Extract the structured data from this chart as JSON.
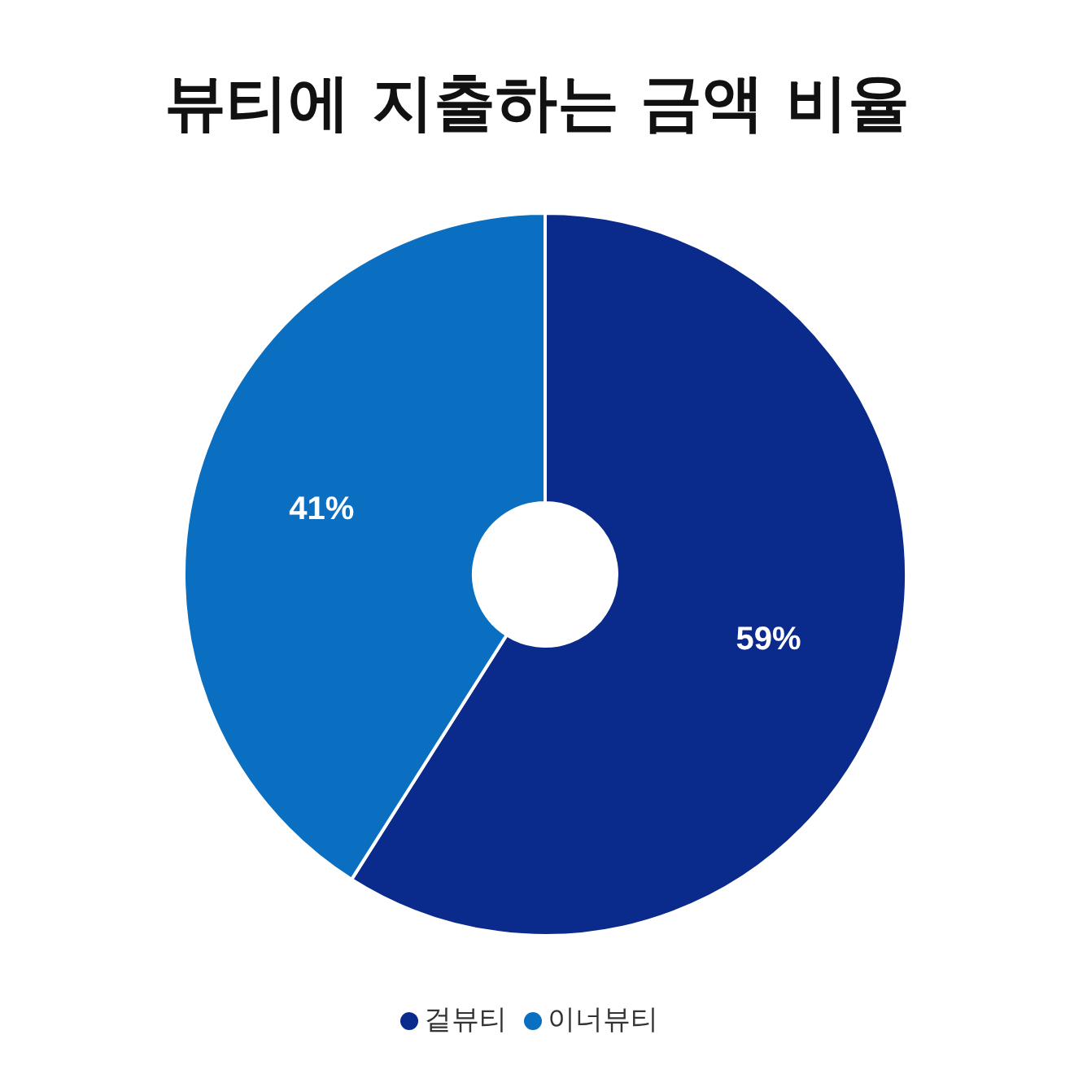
{
  "chart_data": {
    "type": "donut",
    "title": "뷰티에 지출하는 금액 비율",
    "categories": [
      "겉뷰티",
      "이너뷰티"
    ],
    "values": [
      59,
      41
    ],
    "colors": [
      "#0a2a8c",
      "#0a6fc0"
    ],
    "value_labels": [
      "59%",
      "41%"
    ],
    "legend": "bottom"
  }
}
